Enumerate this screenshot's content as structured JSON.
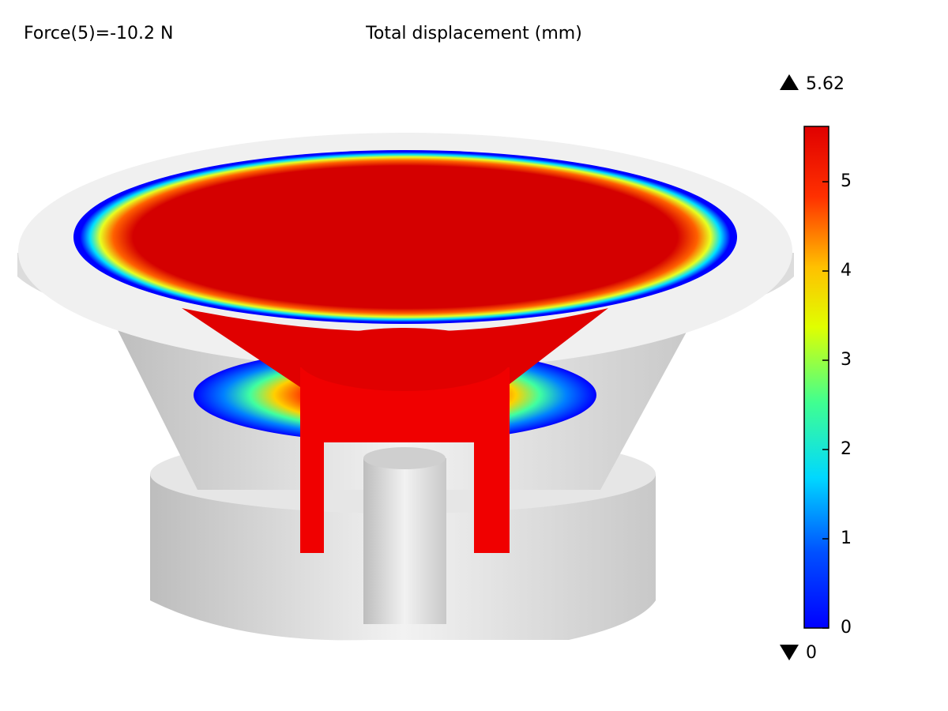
{
  "header": {
    "annotation": "Force(5)=-10.2 N",
    "title": "Total displacement (mm)"
  },
  "colorbar": {
    "max": 5.62,
    "min": 0,
    "ticks": [
      0,
      1,
      2,
      3,
      4,
      5
    ]
  }
}
